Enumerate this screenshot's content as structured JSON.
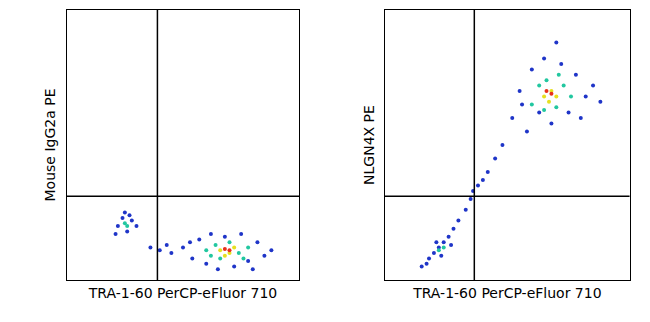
{
  "chart_data": [
    {
      "type": "scatter",
      "xlabel": "TRA-1-60 PerCP-eFluor 710",
      "ylabel": "Mouse IgG2a PE",
      "xlim": [
        0,
        100
      ],
      "ylim": [
        0,
        100
      ],
      "xticks": [],
      "yticks": [],
      "tick_labels": false,
      "grid": false,
      "quadrant_lines": {
        "x": 39,
        "y": 31
      },
      "series": [
        {
          "color": "#1f35c8",
          "x": [
            22,
            24,
            26,
            28,
            25,
            21,
            30,
            27,
            50,
            54,
            57,
            60,
            62,
            65,
            68,
            72,
            75,
            78,
            82,
            85,
            88,
            45,
            53,
            80,
            40,
            36,
            43
          ],
          "y": [
            20,
            23,
            18,
            22,
            25,
            17,
            20,
            24,
            12,
            8,
            15,
            6,
            17,
            4,
            16,
            5,
            17,
            7,
            14,
            9,
            11,
            10,
            14,
            4,
            11,
            12,
            13
          ]
        },
        {
          "color": "#22c7a0",
          "x": [
            25,
            26,
            60,
            64,
            66,
            70,
            74,
            78,
            62,
            76
          ],
          "y": [
            21,
            20,
            11,
            13,
            8,
            14,
            10,
            12,
            9,
            8
          ]
        },
        {
          "color": "#e6e020",
          "x": [
            66,
            70,
            72,
            68
          ],
          "y": [
            11,
            10,
            12,
            9
          ]
        },
        {
          "color": "#e8301c",
          "x": [
            70,
            68
          ],
          "y": [
            11,
            11.5
          ]
        }
      ]
    },
    {
      "type": "scatter",
      "xlabel": "TRA-1-60 PerCP-eFluor 710",
      "ylabel": "NLGN4X PE",
      "xlim": [
        0,
        100
      ],
      "ylim": [
        0,
        100
      ],
      "xticks": [],
      "yticks": [],
      "tick_labels": false,
      "grid": false,
      "quadrant_lines": {
        "x": 36.5,
        "y": 31
      },
      "series": [
        {
          "color": "#1f35c8",
          "x": [
            15,
            18,
            20,
            22,
            24,
            26,
            28,
            17,
            23,
            21,
            27,
            30,
            33,
            35,
            38,
            42,
            45,
            48,
            40,
            36,
            52,
            55,
            58,
            60,
            63,
            65,
            68,
            72,
            75,
            78,
            82,
            85,
            88,
            70,
            56,
            80
          ],
          "y": [
            5,
            8,
            10,
            12,
            14,
            16,
            19,
            6,
            9,
            14,
            13,
            22,
            26,
            30,
            35,
            40,
            45,
            50,
            37,
            33,
            60,
            70,
            55,
            78,
            62,
            82,
            58,
            80,
            62,
            76,
            68,
            72,
            66,
            88,
            65,
            60
          ]
        },
        {
          "color": "#22c7a0",
          "x": [
            22,
            24,
            60,
            63,
            66,
            70,
            73,
            76,
            65,
            71
          ],
          "y": [
            11,
            12,
            65,
            72,
            74,
            64,
            72,
            68,
            63,
            76
          ]
        },
        {
          "color": "#e6e020",
          "x": [
            65,
            68,
            70,
            67
          ],
          "y": [
            68,
            70,
            68,
            66
          ]
        },
        {
          "color": "#e8301c",
          "x": [
            68,
            66
          ],
          "y": [
            69,
            70
          ]
        }
      ]
    }
  ]
}
